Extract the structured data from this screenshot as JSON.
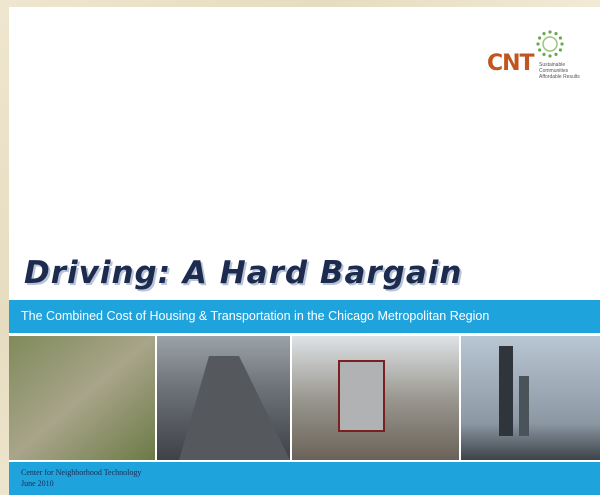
{
  "logo": {
    "name": "CNT",
    "tagline": [
      "Sustainable Communities",
      "Affordable Results"
    ]
  },
  "title": "Driving: A Hard Bargain",
  "subtitle": "The Combined Cost of Housing & Transportation in the Chicago Metropolitan Region",
  "footer": {
    "organization": "Center for Neighborhood Technology",
    "date": "June 2010"
  }
}
